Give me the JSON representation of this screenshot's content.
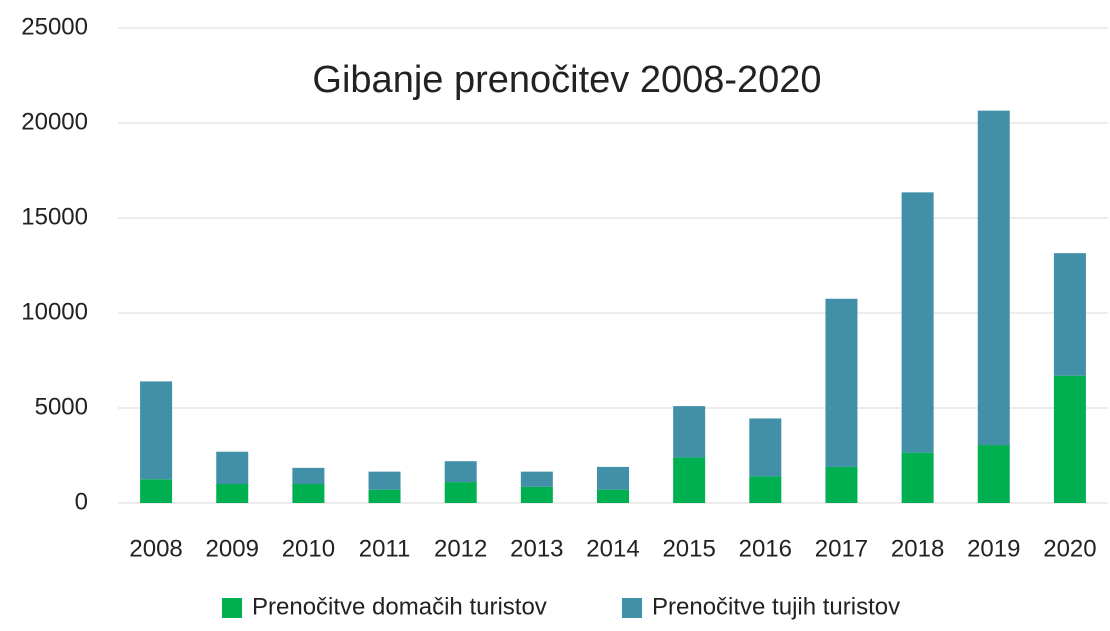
{
  "chart_data": {
    "type": "stacked_bar",
    "title": "Gibanje prenočitev 2008-2020",
    "categories": [
      "2008",
      "2009",
      "2010",
      "2011",
      "2012",
      "2013",
      "2014",
      "2015",
      "2016",
      "2017",
      "2018",
      "2019",
      "2020"
    ],
    "series": [
      {
        "name": "Prenočitve domačih turistov",
        "color": "#00b050",
        "values": [
          1250,
          1000,
          1000,
          700,
          1100,
          850,
          700,
          2400,
          1400,
          1900,
          2650,
          3050,
          6700
        ]
      },
      {
        "name": "Prenočitve tujih turistov",
        "color": "#4190a8",
        "values": [
          5150,
          1700,
          850,
          950,
          1100,
          800,
          1200,
          2700,
          3050,
          8850,
          13700,
          17600,
          6450
        ]
      }
    ],
    "ylim": [
      0,
      25000
    ],
    "yticks": [
      0,
      5000,
      10000,
      15000,
      20000,
      25000
    ],
    "grid": true,
    "legend": "bottom"
  }
}
